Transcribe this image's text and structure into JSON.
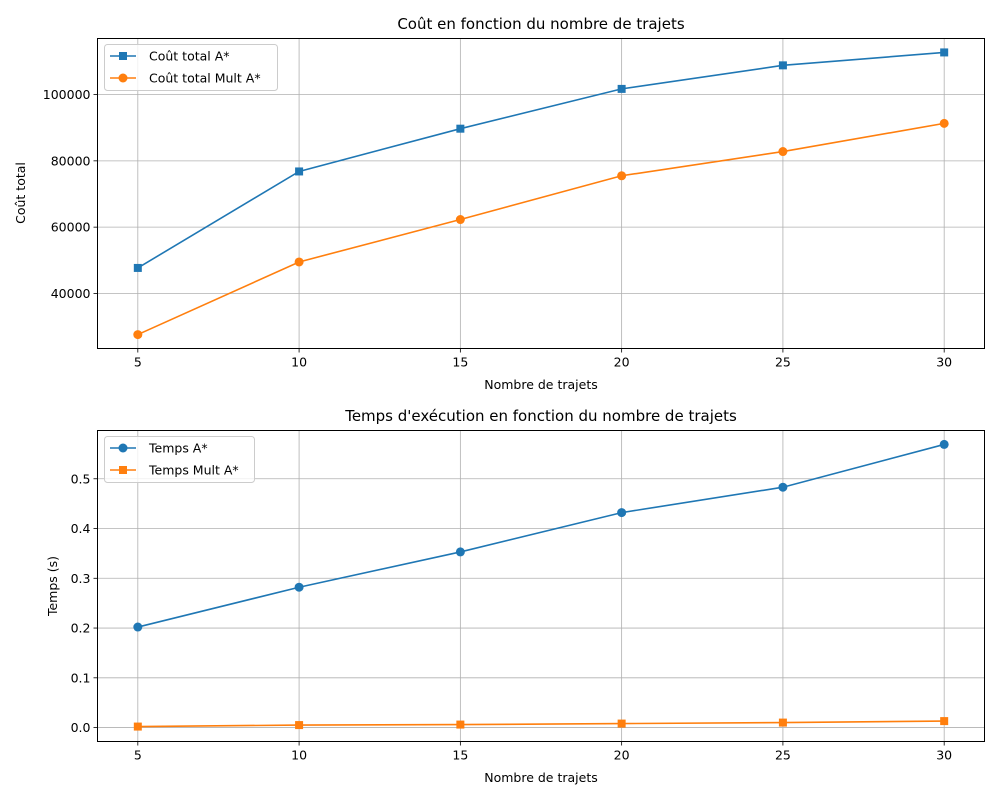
{
  "chart_data": [
    {
      "type": "line",
      "title": "Coût en fonction du nombre de trajets",
      "xlabel": "Nombre de trajets",
      "ylabel": "Coût total",
      "x": [
        5,
        10,
        15,
        20,
        25,
        30
      ],
      "xticks": [
        "5",
        "10",
        "15",
        "20",
        "25",
        "30"
      ],
      "xlim": [
        3.75,
        31.25
      ],
      "ylim": [
        23400,
        116900
      ],
      "yticks": [
        40000,
        60000,
        80000,
        100000
      ],
      "ytick_labels": [
        "40000",
        "60000",
        "80000",
        "100000"
      ],
      "grid": true,
      "legend_placement": "upper left",
      "series": [
        {
          "name": "Coût total A*",
          "marker": "square",
          "color": "#1f77b4",
          "values": [
            47700,
            76800,
            89700,
            101700,
            108800,
            112700
          ]
        },
        {
          "name": "Coût total Mult A*",
          "marker": "circle",
          "color": "#ff7f0e",
          "values": [
            27600,
            49500,
            62300,
            75500,
            82800,
            91300
          ]
        }
      ]
    },
    {
      "type": "line",
      "title": "Temps d'exécution en fonction du nombre de trajets",
      "xlabel": "Nombre de trajets",
      "ylabel": "Temps (s)",
      "x": [
        5,
        10,
        15,
        20,
        25,
        30
      ],
      "xticks": [
        "5",
        "10",
        "15",
        "20",
        "25",
        "30"
      ],
      "xlim": [
        3.75,
        31.25
      ],
      "ylim": [
        -0.028,
        0.597
      ],
      "yticks": [
        0,
        0.1,
        0.2,
        0.3,
        0.4,
        0.5
      ],
      "ytick_labels": [
        "0.0",
        "0.1",
        "0.2",
        "0.3",
        "0.4",
        "0.5"
      ],
      "grid": true,
      "legend_placement": "upper left",
      "series": [
        {
          "name": "Temps A*",
          "marker": "circle",
          "color": "#1f77b4",
          "values": [
            0.202,
            0.282,
            0.353,
            0.432,
            0.483,
            0.569
          ]
        },
        {
          "name": "Temps Mult A*",
          "marker": "square",
          "color": "#ff7f0e",
          "values": [
            0.002,
            0.005,
            0.006,
            0.008,
            0.01,
            0.013
          ]
        }
      ]
    }
  ]
}
